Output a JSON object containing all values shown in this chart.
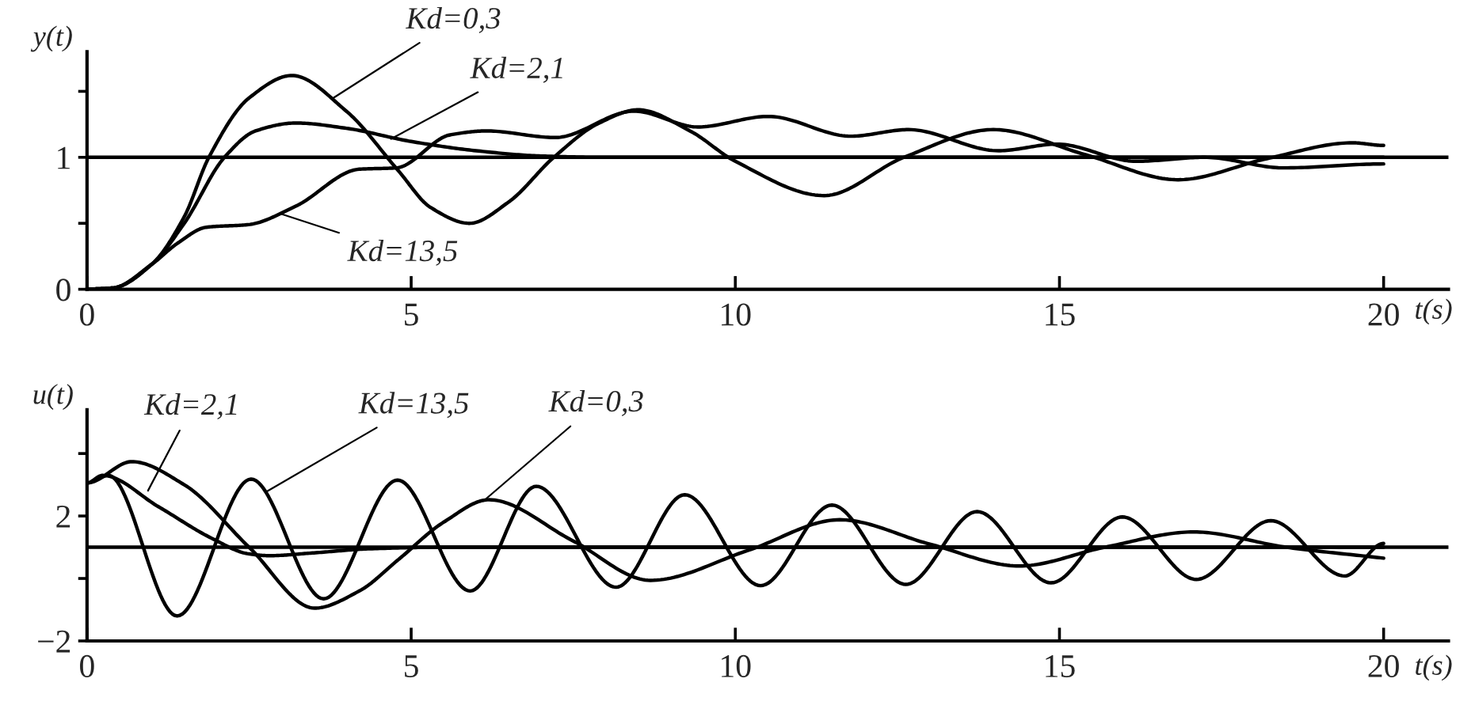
{
  "chart_data": [
    {
      "type": "line",
      "ylabel": "y(t)",
      "xlabel": "t(s)",
      "xlim": [
        0,
        21
      ],
      "ylim": [
        0,
        1.8
      ],
      "xticks": [
        0,
        5,
        10,
        15,
        20
      ],
      "yticks": [
        0,
        {
          "value": 0.5,
          "label": null
        },
        1,
        {
          "value": 1.5,
          "label": null
        }
      ],
      "series": [
        {
          "color": "#000000",
          "x": [
            0,
            0.4,
            1,
            1.5,
            1.88,
            2.5,
            3.16,
            4,
            4.8,
            5.3,
            5.9,
            6.5,
            7.2,
            7.9,
            8.5,
            9.3,
            10,
            11.37,
            12.6,
            13.98,
            15.4,
            16.83,
            18.2,
            19.52,
            20
          ],
          "values": [
            0,
            0.01,
            0.19,
            0.55,
            1.0,
            1.45,
            1.62,
            1.35,
            0.9,
            0.62,
            0.5,
            0.66,
            1.0,
            1.26,
            1.36,
            1.2,
            0.97,
            0.71,
            1.0,
            1.21,
            1.02,
            0.83,
            0.99,
            1.11,
            1.09
          ]
        },
        {
          "color": "#000000",
          "x": [
            0,
            0.4,
            1,
            1.5,
            2.12,
            2.6,
            3.22,
            4,
            5,
            6,
            7,
            8,
            10,
            12,
            15,
            17,
            18.5,
            20
          ],
          "values": [
            0,
            0.01,
            0.19,
            0.5,
            1.0,
            1.2,
            1.26,
            1.22,
            1.12,
            1.05,
            1.01,
            1.0,
            1.0,
            1.0,
            1.0,
            1.0,
            1.0,
            1.0
          ]
        },
        {
          "color": "#000000",
          "x": [
            0,
            0.4,
            1,
            1.4,
            1.84,
            2.49,
            3.22,
            4.2,
            4.77,
            5.6,
            6.16,
            7.22,
            8.44,
            9.42,
            10.51,
            11.78,
            12.67,
            14.06,
            14.96,
            16.18,
            17.24,
            18.46,
            20
          ],
          "values": [
            0,
            0.01,
            0.19,
            0.35,
            0.47,
            0.49,
            0.63,
            0.91,
            0.92,
            1.17,
            1.2,
            1.15,
            1.35,
            1.23,
            1.31,
            1.16,
            1.21,
            1.05,
            1.1,
            0.97,
            1.0,
            0.92,
            0.95
          ]
        }
      ],
      "ref_lines": [
        {
          "axis": "y",
          "value": 1,
          "color": "#000000"
        }
      ],
      "annotations": [
        {
          "text": "Kd=0,3",
          "x": 3.8,
          "y": 1.45
        },
        {
          "text": "Kd=2,1",
          "x": 4.69,
          "y": 1.14
        },
        {
          "text": "Kd=13,5",
          "x": 3.0,
          "y": 0.57
        }
      ]
    },
    {
      "type": "line",
      "ylabel": "u(t)",
      "xlabel": "t(s)",
      "xlim": [
        0,
        21
      ],
      "ylim": [
        -2,
        5.4
      ],
      "xticks": [
        0,
        5,
        10,
        15,
        20
      ],
      "yticks": [
        {
          "value": -2,
          "label": "−2"
        },
        {
          "value": 0,
          "label": null
        },
        2,
        {
          "value": 4,
          "label": null
        }
      ],
      "series": [
        {
          "color": "#000000",
          "x": [
            0,
            0.69,
            1.5,
            2.5,
            3.51,
            4.2,
            4.8,
            5.5,
            6.2,
            7.5,
            8.69,
            10.2,
            11.61,
            13,
            14.38,
            15.7,
            17.07,
            18.5,
            20
          ],
          "values": [
            3.06,
            3.74,
            3.0,
            1.0,
            -0.95,
            -0.4,
            0.6,
            1.8,
            2.52,
            1.2,
            -0.06,
            0.9,
            1.88,
            1.1,
            0.4,
            1.0,
            1.49,
            1.0,
            0.65
          ]
        },
        {
          "color": "#000000",
          "x": [
            0,
            0.33,
            1.39,
            2.53,
            3.65,
            4.79,
            5.91,
            6.93,
            8.16,
            9.22,
            10.39,
            11.49,
            12.63,
            13.73,
            14.87,
            15.97,
            17.11,
            18.26,
            19.4,
            20
          ],
          "values": [
            3.06,
            3.3,
            -1.2,
            3.18,
            -0.65,
            3.15,
            -0.4,
            2.95,
            -0.28,
            2.68,
            -0.23,
            2.35,
            -0.19,
            2.14,
            -0.14,
            1.97,
            -0.03,
            1.85,
            0.08,
            1.12
          ]
        },
        {
          "color": "#000000",
          "x": [
            0,
            0.24,
            1.1,
            1.92,
            2.49,
            2.81,
            3.5,
            4.36,
            5.5,
            10,
            20
          ],
          "values": [
            3.06,
            3.3,
            2.3,
            1.29,
            0.79,
            0.73,
            0.82,
            0.95,
            1.0,
            1.0,
            1.0
          ]
        }
      ],
      "ref_lines": [
        {
          "axis": "y",
          "value": 1,
          "color": "#000000"
        }
      ],
      "annotations": [
        {
          "text": "Kd=2,1",
          "x": 0.94,
          "y": 2.81
        },
        {
          "text": "Kd=13,5",
          "x": 2.77,
          "y": 2.78
        },
        {
          "text": "Kd=0,3",
          "x": 6.16,
          "y": 2.56
        }
      ]
    }
  ]
}
